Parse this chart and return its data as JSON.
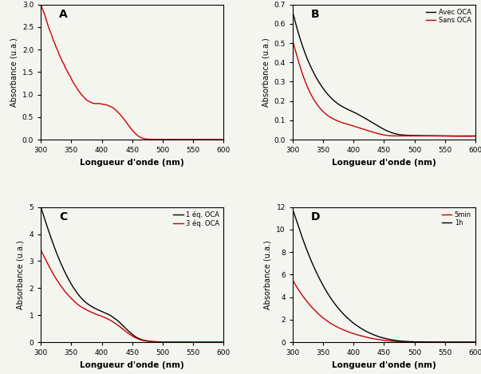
{
  "x_range": [
    300,
    600
  ],
  "xticks": [
    300,
    350,
    400,
    450,
    500,
    550,
    600
  ],
  "xlabel": "Longueur d'onde (nm)",
  "ylabel": "Absorbance (u.a.)",
  "bg_color": "#f5f5f0",
  "panel_A": {
    "label": "A",
    "ylim": [
      0,
      3.0
    ],
    "yticks": [
      0.0,
      0.5,
      1.0,
      1.5,
      2.0,
      2.5,
      3.0
    ],
    "curves": [
      {
        "color": "#cc0000",
        "lw": 1.0,
        "x": [
          300,
          302,
          305,
          308,
          310,
          312,
          315,
          318,
          320,
          323,
          325,
          328,
          330,
          333,
          335,
          338,
          340,
          343,
          345,
          348,
          350,
          355,
          360,
          365,
          370,
          375,
          380,
          385,
          390,
          395,
          400,
          405,
          410,
          415,
          420,
          425,
          430,
          435,
          440,
          445,
          450,
          455,
          460,
          465,
          470,
          475,
          480,
          490,
          500,
          520,
          550,
          600
        ],
        "y": [
          3.0,
          2.92,
          2.82,
          2.7,
          2.61,
          2.52,
          2.41,
          2.31,
          2.22,
          2.13,
          2.05,
          1.97,
          1.89,
          1.81,
          1.74,
          1.67,
          1.6,
          1.53,
          1.47,
          1.41,
          1.35,
          1.23,
          1.12,
          1.03,
          0.95,
          0.88,
          0.84,
          0.81,
          0.8,
          0.8,
          0.79,
          0.78,
          0.76,
          0.73,
          0.69,
          0.63,
          0.56,
          0.48,
          0.39,
          0.3,
          0.21,
          0.14,
          0.08,
          0.04,
          0.02,
          0.01,
          0.008,
          0.005,
          0.004,
          0.003,
          0.002,
          0.002
        ]
      }
    ]
  },
  "panel_B": {
    "label": "B",
    "ylim": [
      0,
      0.7
    ],
    "yticks": [
      0.0,
      0.1,
      0.2,
      0.3,
      0.4,
      0.5,
      0.6,
      0.7
    ],
    "curves": [
      {
        "label": "Avec OCA",
        "color": "#000000",
        "lw": 1.0,
        "x": [
          300,
          305,
          310,
          315,
          320,
          325,
          330,
          335,
          340,
          345,
          350,
          355,
          360,
          365,
          370,
          375,
          380,
          385,
          390,
          395,
          400,
          405,
          410,
          420,
          430,
          440,
          450,
          460,
          470,
          480,
          490,
          500,
          520,
          550,
          600
        ],
        "y": [
          0.66,
          0.6,
          0.545,
          0.495,
          0.45,
          0.41,
          0.375,
          0.343,
          0.314,
          0.288,
          0.265,
          0.244,
          0.226,
          0.21,
          0.196,
          0.184,
          0.174,
          0.165,
          0.157,
          0.15,
          0.143,
          0.135,
          0.126,
          0.109,
          0.09,
          0.071,
          0.053,
          0.039,
          0.029,
          0.024,
          0.022,
          0.021,
          0.02,
          0.019,
          0.019
        ]
      },
      {
        "label": "Sans OCA",
        "color": "#cc0000",
        "lw": 1.0,
        "x": [
          300,
          305,
          310,
          315,
          320,
          325,
          330,
          335,
          340,
          345,
          350,
          355,
          360,
          365,
          370,
          375,
          380,
          385,
          390,
          395,
          400,
          405,
          410,
          420,
          430,
          440,
          450,
          460,
          470,
          480,
          490,
          500,
          520,
          550,
          600
        ],
        "y": [
          0.51,
          0.455,
          0.4,
          0.35,
          0.305,
          0.267,
          0.234,
          0.206,
          0.182,
          0.162,
          0.145,
          0.131,
          0.119,
          0.11,
          0.102,
          0.095,
          0.089,
          0.084,
          0.08,
          0.075,
          0.07,
          0.065,
          0.06,
          0.05,
          0.04,
          0.031,
          0.024,
          0.02,
          0.019,
          0.019,
          0.019,
          0.019,
          0.019,
          0.018,
          0.018
        ]
      }
    ]
  },
  "panel_C": {
    "label": "C",
    "ylim": [
      0,
      5.0
    ],
    "yticks": [
      0,
      1,
      2,
      3,
      4,
      5
    ],
    "curves": [
      {
        "label": "1 éq. OCA",
        "color": "#000000",
        "lw": 1.0,
        "x": [
          300,
          305,
          310,
          315,
          320,
          325,
          330,
          335,
          340,
          345,
          350,
          355,
          360,
          365,
          370,
          375,
          380,
          385,
          390,
          395,
          400,
          405,
          410,
          415,
          420,
          425,
          430,
          435,
          440,
          445,
          450,
          455,
          460,
          465,
          470,
          475,
          480,
          485,
          490,
          495,
          500,
          505,
          510,
          520,
          550,
          600
        ],
        "y": [
          5.0,
          4.65,
          4.3,
          3.97,
          3.65,
          3.35,
          3.07,
          2.81,
          2.57,
          2.35,
          2.15,
          1.97,
          1.81,
          1.67,
          1.55,
          1.45,
          1.37,
          1.3,
          1.24,
          1.19,
          1.14,
          1.09,
          1.04,
          0.98,
          0.9,
          0.82,
          0.72,
          0.61,
          0.5,
          0.39,
          0.3,
          0.21,
          0.15,
          0.1,
          0.07,
          0.05,
          0.035,
          0.025,
          0.018,
          0.013,
          0.009,
          0.007,
          0.005,
          0.004,
          0.003,
          0.003
        ]
      },
      {
        "label": "3 éq. OCA",
        "color": "#cc0000",
        "lw": 1.0,
        "x": [
          300,
          305,
          310,
          315,
          320,
          325,
          330,
          335,
          340,
          345,
          350,
          355,
          360,
          365,
          370,
          375,
          380,
          385,
          390,
          395,
          400,
          405,
          410,
          415,
          420,
          425,
          430,
          435,
          440,
          445,
          450,
          455,
          460,
          465,
          470,
          475,
          480,
          485,
          490,
          500,
          510,
          520,
          550,
          600
        ],
        "y": [
          3.4,
          3.18,
          2.95,
          2.74,
          2.54,
          2.35,
          2.18,
          2.02,
          1.87,
          1.74,
          1.62,
          1.51,
          1.41,
          1.33,
          1.26,
          1.2,
          1.14,
          1.09,
          1.04,
          1.0,
          0.96,
          0.91,
          0.86,
          0.8,
          0.73,
          0.65,
          0.57,
          0.48,
          0.39,
          0.31,
          0.23,
          0.17,
          0.12,
          0.08,
          0.056,
          0.038,
          0.026,
          0.017,
          0.011,
          0.006,
          0.004,
          0.003,
          0.002,
          0.002
        ]
      }
    ]
  },
  "panel_D": {
    "label": "D",
    "ylim": [
      0,
      12
    ],
    "yticks": [
      0,
      2,
      4,
      6,
      8,
      10,
      12
    ],
    "curves": [
      {
        "label": "5min",
        "color": "#cc0000",
        "lw": 1.0,
        "x": [
          300,
          305,
          310,
          315,
          320,
          325,
          330,
          335,
          340,
          345,
          350,
          355,
          360,
          365,
          370,
          375,
          380,
          385,
          390,
          395,
          400,
          410,
          420,
          430,
          440,
          450,
          460,
          470,
          480,
          490,
          500,
          520,
          550,
          600
        ],
        "y": [
          5.5,
          5.05,
          4.62,
          4.22,
          3.85,
          3.51,
          3.19,
          2.9,
          2.63,
          2.38,
          2.15,
          1.95,
          1.76,
          1.59,
          1.44,
          1.3,
          1.17,
          1.06,
          0.95,
          0.85,
          0.76,
          0.6,
          0.46,
          0.34,
          0.25,
          0.17,
          0.11,
          0.07,
          0.045,
          0.03,
          0.02,
          0.01,
          0.005,
          0.003
        ]
      },
      {
        "label": "1h",
        "color": "#000000",
        "lw": 1.0,
        "x": [
          300,
          305,
          310,
          315,
          320,
          325,
          330,
          335,
          340,
          345,
          350,
          355,
          360,
          365,
          370,
          375,
          380,
          385,
          390,
          395,
          400,
          410,
          420,
          430,
          440,
          450,
          460,
          470,
          480,
          490,
          500,
          520,
          550,
          600
        ],
        "y": [
          11.8,
          11.0,
          10.2,
          9.4,
          8.65,
          7.95,
          7.28,
          6.66,
          6.08,
          5.54,
          5.03,
          4.56,
          4.12,
          3.72,
          3.35,
          3.01,
          2.7,
          2.41,
          2.15,
          1.91,
          1.69,
          1.31,
          0.99,
          0.73,
          0.52,
          0.36,
          0.24,
          0.15,
          0.09,
          0.055,
          0.033,
          0.013,
          0.005,
          0.003
        ]
      }
    ]
  }
}
